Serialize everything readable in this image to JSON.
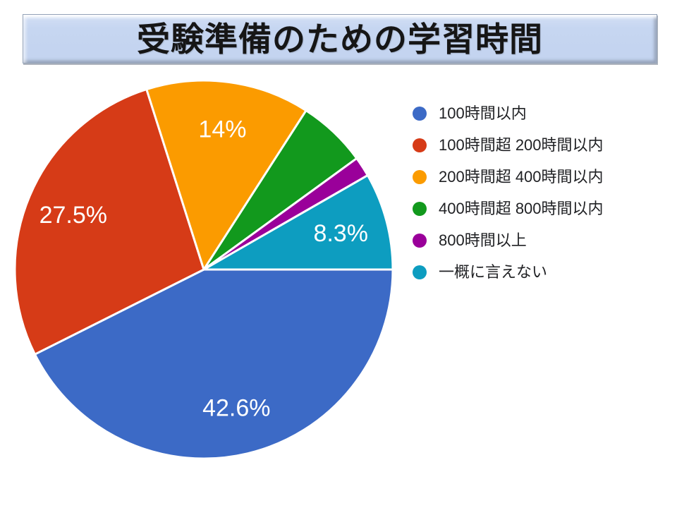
{
  "title": {
    "text": "受験準備のための学習時間"
  },
  "chart_data": {
    "type": "pie",
    "title": "受験準備のための学習時間",
    "legend_position": "right",
    "start_angle": "3-o'clock, clockwise",
    "slices": [
      {
        "label": "100時間以内",
        "value": 42.6,
        "display": "42.6%",
        "color": "#3c6ac6"
      },
      {
        "label": "100時間超 200時間以内",
        "value": 27.5,
        "display": "27.5%",
        "color": "#d63b17"
      },
      {
        "label": "200時間超 400時間以内",
        "value": 14.0,
        "display": "14%",
        "color": "#fb9b00"
      },
      {
        "label": "400時間超 800時間以内",
        "value": 5.9,
        "display": "",
        "color": "#12991d"
      },
      {
        "label": "800時間以上",
        "value": 1.7,
        "display": "",
        "color": "#9a009a"
      },
      {
        "label": "一概に言えない",
        "value": 8.3,
        "display": "8.3%",
        "color": "#0d9dc0"
      }
    ],
    "label_text_color": "#ffffff",
    "slice_border_color": "#ffffff"
  }
}
